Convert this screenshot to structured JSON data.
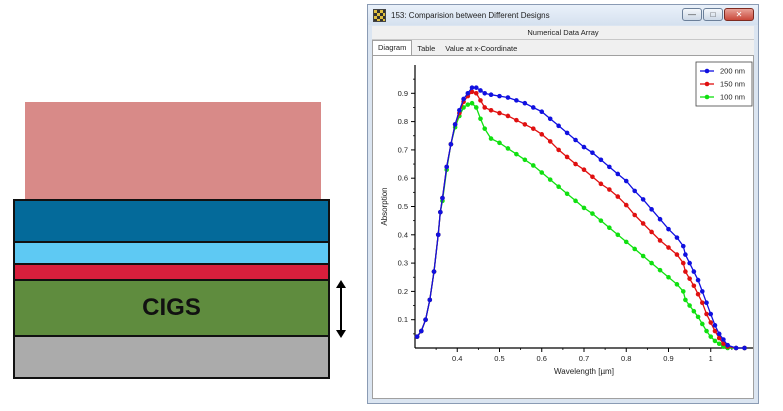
{
  "stack": {
    "cigs_label": "CIGS"
  },
  "window": {
    "title": "153: Comparision between Different Designs",
    "subheader": "Numerical Data Array",
    "buttons": {
      "minimize": "—",
      "maximize": "□",
      "close": "✕"
    },
    "tabs": [
      {
        "label": "Diagram",
        "active": true
      },
      {
        "label": "Table",
        "active": false
      },
      {
        "label": "Value at x-Coordinate",
        "active": false
      }
    ]
  },
  "chart_data": {
    "type": "line",
    "xlabel": "Wavelength [µm]",
    "ylabel": "Absorption",
    "xlim": [
      0.3,
      1.1
    ],
    "ylim": [
      0,
      1.0
    ],
    "xticks": [
      0.4,
      0.5,
      0.6,
      0.7,
      0.8,
      0.9,
      1
    ],
    "yticks": [
      0.1,
      0.2,
      0.3,
      0.4,
      0.5,
      0.6,
      0.7,
      0.8,
      0.9
    ],
    "grid": false,
    "legend": "top-right",
    "series": [
      {
        "name": "200 nm",
        "color": "#1010e0",
        "points": [
          [
            0.305,
            0.04
          ],
          [
            0.315,
            0.06
          ],
          [
            0.325,
            0.1
          ],
          [
            0.335,
            0.17
          ],
          [
            0.345,
            0.27
          ],
          [
            0.355,
            0.4
          ],
          [
            0.36,
            0.48
          ],
          [
            0.365,
            0.53
          ],
          [
            0.375,
            0.64
          ],
          [
            0.385,
            0.72
          ],
          [
            0.395,
            0.79
          ],
          [
            0.405,
            0.84
          ],
          [
            0.415,
            0.88
          ],
          [
            0.425,
            0.9
          ],
          [
            0.435,
            0.92
          ],
          [
            0.445,
            0.92
          ],
          [
            0.455,
            0.91
          ],
          [
            0.465,
            0.9
          ],
          [
            0.48,
            0.895
          ],
          [
            0.5,
            0.89
          ],
          [
            0.52,
            0.885
          ],
          [
            0.54,
            0.875
          ],
          [
            0.56,
            0.865
          ],
          [
            0.58,
            0.85
          ],
          [
            0.6,
            0.835
          ],
          [
            0.62,
            0.81
          ],
          [
            0.64,
            0.785
          ],
          [
            0.66,
            0.76
          ],
          [
            0.68,
            0.735
          ],
          [
            0.7,
            0.71
          ],
          [
            0.72,
            0.69
          ],
          [
            0.74,
            0.665
          ],
          [
            0.76,
            0.64
          ],
          [
            0.78,
            0.615
          ],
          [
            0.8,
            0.59
          ],
          [
            0.82,
            0.555
          ],
          [
            0.84,
            0.525
          ],
          [
            0.86,
            0.49
          ],
          [
            0.88,
            0.455
          ],
          [
            0.9,
            0.42
          ],
          [
            0.92,
            0.39
          ],
          [
            0.935,
            0.36
          ],
          [
            0.94,
            0.33
          ],
          [
            0.95,
            0.3
          ],
          [
            0.96,
            0.27
          ],
          [
            0.97,
            0.24
          ],
          [
            0.98,
            0.2
          ],
          [
            0.99,
            0.16
          ],
          [
            1.0,
            0.12
          ],
          [
            1.01,
            0.08
          ],
          [
            1.02,
            0.05
          ],
          [
            1.03,
            0.03
          ],
          [
            1.04,
            0.01
          ],
          [
            1.06,
            0.0
          ],
          [
            1.08,
            0.0
          ]
        ]
      },
      {
        "name": "150 nm",
        "color": "#e01010",
        "points": [
          [
            0.305,
            0.04
          ],
          [
            0.315,
            0.06
          ],
          [
            0.325,
            0.1
          ],
          [
            0.335,
            0.17
          ],
          [
            0.345,
            0.27
          ],
          [
            0.355,
            0.4
          ],
          [
            0.36,
            0.48
          ],
          [
            0.365,
            0.53
          ],
          [
            0.375,
            0.64
          ],
          [
            0.385,
            0.72
          ],
          [
            0.395,
            0.79
          ],
          [
            0.405,
            0.83
          ],
          [
            0.415,
            0.87
          ],
          [
            0.425,
            0.89
          ],
          [
            0.435,
            0.905
          ],
          [
            0.445,
            0.9
          ],
          [
            0.455,
            0.875
          ],
          [
            0.465,
            0.85
          ],
          [
            0.48,
            0.84
          ],
          [
            0.5,
            0.83
          ],
          [
            0.52,
            0.82
          ],
          [
            0.54,
            0.805
          ],
          [
            0.56,
            0.79
          ],
          [
            0.58,
            0.775
          ],
          [
            0.6,
            0.755
          ],
          [
            0.62,
            0.73
          ],
          [
            0.64,
            0.7
          ],
          [
            0.66,
            0.675
          ],
          [
            0.68,
            0.65
          ],
          [
            0.7,
            0.63
          ],
          [
            0.72,
            0.605
          ],
          [
            0.74,
            0.58
          ],
          [
            0.76,
            0.56
          ],
          [
            0.78,
            0.535
          ],
          [
            0.8,
            0.505
          ],
          [
            0.82,
            0.47
          ],
          [
            0.84,
            0.44
          ],
          [
            0.86,
            0.41
          ],
          [
            0.88,
            0.38
          ],
          [
            0.9,
            0.355
          ],
          [
            0.92,
            0.33
          ],
          [
            0.935,
            0.3
          ],
          [
            0.94,
            0.27
          ],
          [
            0.95,
            0.245
          ],
          [
            0.96,
            0.22
          ],
          [
            0.97,
            0.19
          ],
          [
            0.98,
            0.16
          ],
          [
            0.99,
            0.12
          ],
          [
            1.0,
            0.09
          ],
          [
            1.01,
            0.06
          ],
          [
            1.02,
            0.035
          ],
          [
            1.03,
            0.015
          ],
          [
            1.04,
            0.005
          ],
          [
            1.06,
            0.0
          ],
          [
            1.08,
            0.0
          ]
        ]
      },
      {
        "name": "100 nm",
        "color": "#10e010",
        "points": [
          [
            0.305,
            0.04
          ],
          [
            0.315,
            0.06
          ],
          [
            0.325,
            0.1
          ],
          [
            0.335,
            0.17
          ],
          [
            0.345,
            0.27
          ],
          [
            0.355,
            0.4
          ],
          [
            0.36,
            0.48
          ],
          [
            0.365,
            0.52
          ],
          [
            0.375,
            0.63
          ],
          [
            0.385,
            0.72
          ],
          [
            0.395,
            0.78
          ],
          [
            0.405,
            0.82
          ],
          [
            0.415,
            0.85
          ],
          [
            0.425,
            0.86
          ],
          [
            0.435,
            0.865
          ],
          [
            0.445,
            0.85
          ],
          [
            0.455,
            0.81
          ],
          [
            0.465,
            0.775
          ],
          [
            0.48,
            0.74
          ],
          [
            0.5,
            0.725
          ],
          [
            0.52,
            0.705
          ],
          [
            0.54,
            0.685
          ],
          [
            0.56,
            0.665
          ],
          [
            0.58,
            0.645
          ],
          [
            0.6,
            0.62
          ],
          [
            0.62,
            0.595
          ],
          [
            0.64,
            0.57
          ],
          [
            0.66,
            0.545
          ],
          [
            0.68,
            0.52
          ],
          [
            0.7,
            0.495
          ],
          [
            0.72,
            0.475
          ],
          [
            0.74,
            0.45
          ],
          [
            0.76,
            0.425
          ],
          [
            0.78,
            0.4
          ],
          [
            0.8,
            0.375
          ],
          [
            0.82,
            0.35
          ],
          [
            0.84,
            0.325
          ],
          [
            0.86,
            0.3
          ],
          [
            0.88,
            0.275
          ],
          [
            0.9,
            0.25
          ],
          [
            0.92,
            0.225
          ],
          [
            0.935,
            0.2
          ],
          [
            0.94,
            0.17
          ],
          [
            0.95,
            0.15
          ],
          [
            0.96,
            0.13
          ],
          [
            0.97,
            0.11
          ],
          [
            0.98,
            0.085
          ],
          [
            0.99,
            0.06
          ],
          [
            1.0,
            0.04
          ],
          [
            1.01,
            0.025
          ],
          [
            1.02,
            0.015
          ],
          [
            1.03,
            0.005
          ],
          [
            1.04,
            0.0
          ],
          [
            1.06,
            0.0
          ],
          [
            1.08,
            0.0
          ]
        ]
      }
    ]
  }
}
